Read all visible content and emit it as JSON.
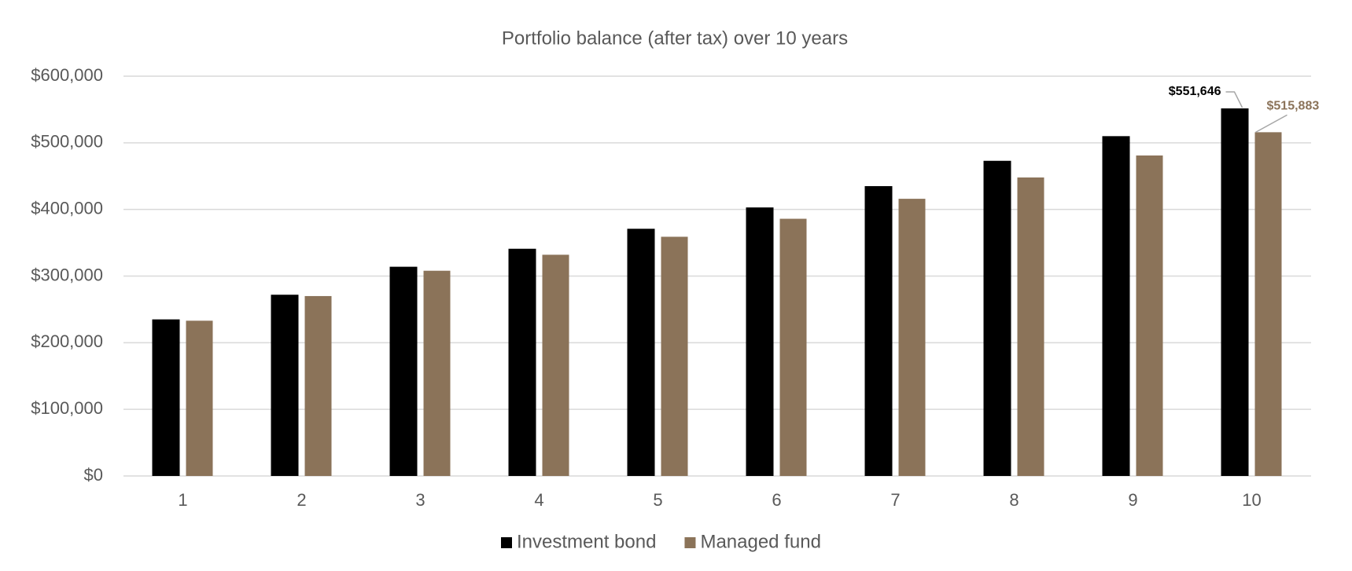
{
  "chart_data": {
    "type": "bar",
    "title": "Portfolio balance (after tax) over 10 years",
    "categories": [
      "1",
      "2",
      "3",
      "4",
      "5",
      "6",
      "7",
      "8",
      "9",
      "10"
    ],
    "series": [
      {
        "name": "Investment bond",
        "color": "#000000",
        "values": [
          235000,
          272000,
          314000,
          341000,
          371000,
          403000,
          435000,
          473000,
          510000,
          551646
        ],
        "value_labels": [
          null,
          null,
          null,
          null,
          null,
          null,
          null,
          null,
          null,
          "$551,646"
        ]
      },
      {
        "name": "Managed fund",
        "color": "#8b7359",
        "values": [
          233000,
          270000,
          308000,
          332000,
          359000,
          386000,
          416000,
          448000,
          481000,
          515883
        ],
        "value_labels": [
          null,
          null,
          null,
          null,
          null,
          null,
          null,
          null,
          null,
          "$515,883"
        ]
      }
    ],
    "ylim": [
      0,
      600000
    ],
    "yticks": [
      {
        "value": 0,
        "label": "$0"
      },
      {
        "value": 100000,
        "label": "$100,000"
      },
      {
        "value": 200000,
        "label": "$200,000"
      },
      {
        "value": 300000,
        "label": "$300,000"
      },
      {
        "value": 400000,
        "label": "$400,000"
      },
      {
        "value": 500000,
        "label": "$500,000"
      },
      {
        "value": 600000,
        "label": "$600,000"
      }
    ],
    "grid": true,
    "legend": "bottom"
  }
}
